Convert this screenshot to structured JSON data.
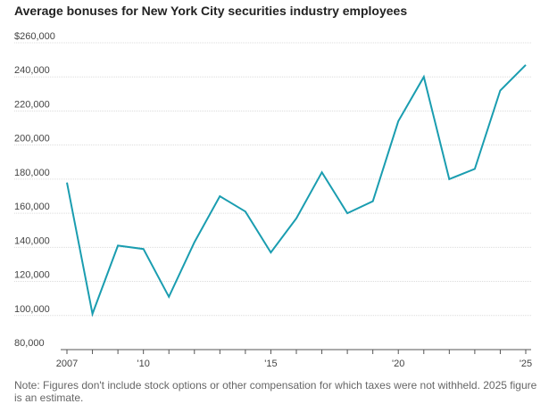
{
  "chart_data": {
    "type": "line",
    "title": "Average bonuses for New York City securities industry employees",
    "xlabel": "",
    "ylabel": "",
    "x": [
      2007,
      2008,
      2009,
      2010,
      2011,
      2012,
      2013,
      2014,
      2015,
      2016,
      2017,
      2018,
      2019,
      2020,
      2021,
      2022,
      2023,
      2024,
      2025
    ],
    "series": [
      {
        "name": "Average bonus",
        "color": "#1a9db0",
        "values": [
          178000,
          101000,
          141000,
          139000,
          111000,
          143000,
          170000,
          161000,
          137000,
          157000,
          184000,
          160000,
          167000,
          214000,
          240000,
          180000,
          186000,
          232000,
          247000
        ]
      }
    ],
    "ylim": [
      80000,
      260000
    ],
    "yticks": [
      {
        "value": 260000,
        "label": "$260,000"
      },
      {
        "value": 240000,
        "label": "240,000"
      },
      {
        "value": 220000,
        "label": "220,000"
      },
      {
        "value": 200000,
        "label": "200,000"
      },
      {
        "value": 180000,
        "label": "180,000"
      },
      {
        "value": 160000,
        "label": "160,000"
      },
      {
        "value": 140000,
        "label": "140,000"
      },
      {
        "value": 120000,
        "label": "120,000"
      },
      {
        "value": 100000,
        "label": "100,000"
      },
      {
        "value": 80000,
        "label": "80,000"
      }
    ],
    "xticks": [
      {
        "value": 2007,
        "label": "2007"
      },
      {
        "value": 2010,
        "label": "'10"
      },
      {
        "value": 2015,
        "label": "'15"
      },
      {
        "value": 2020,
        "label": "'20"
      },
      {
        "value": 2025,
        "label": "'25"
      }
    ],
    "grid": true,
    "note": "Note: Figures don't include stock options or other compensation for which taxes were not withheld. 2025 figure is an estimate."
  }
}
